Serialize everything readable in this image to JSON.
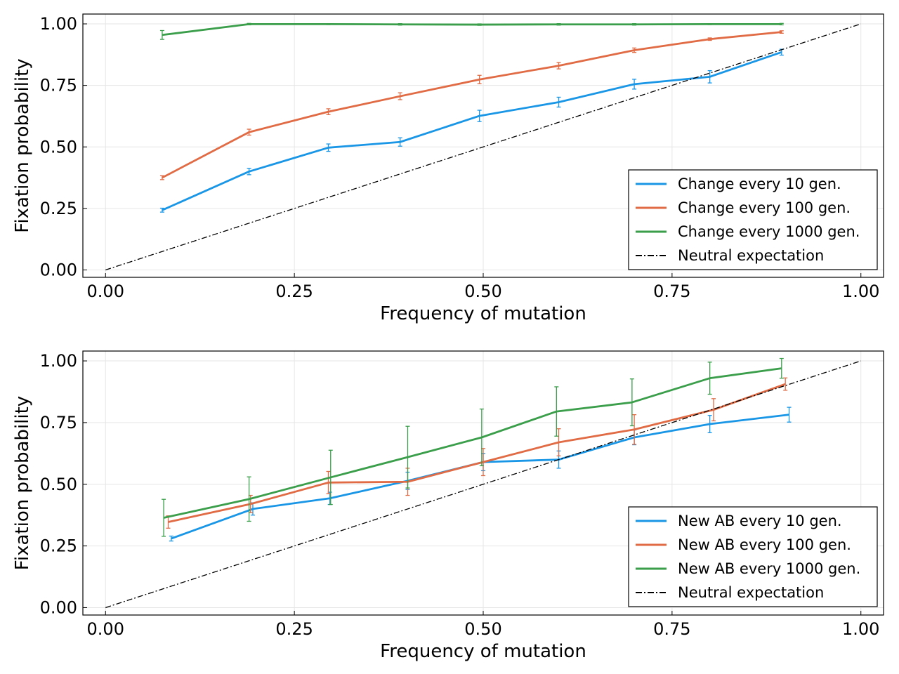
{
  "chart_data": [
    {
      "type": "line",
      "xlabel": "Frequency of mutation",
      "ylabel": "Fixation probability",
      "xlim": [
        -0.03,
        1.03
      ],
      "ylim": [
        -0.03,
        1.04
      ],
      "xticks": [
        0,
        0.25,
        0.5,
        0.75,
        1
      ],
      "xtick_labels": [
        "0.00",
        "0.25",
        "0.50",
        "0.75",
        "1.00"
      ],
      "yticks": [
        0,
        0.25,
        0.5,
        0.75,
        1
      ],
      "ytick_labels": [
        "0.00",
        "0.25",
        "0.50",
        "0.75",
        "1.00"
      ],
      "grid": true,
      "legend_position": "bottom-right",
      "series": [
        {
          "name": "Change every 10 gen.",
          "color": "#1a96e6",
          "x": [
            0.075,
            0.19,
            0.295,
            0.39,
            0.495,
            0.6,
            0.7,
            0.8,
            0.895
          ],
          "y": [
            0.243,
            0.4,
            0.497,
            0.52,
            0.626,
            0.682,
            0.755,
            0.785,
            0.885
          ],
          "err": [
            0.008,
            0.013,
            0.015,
            0.017,
            0.023,
            0.02,
            0.02,
            0.025,
            0.012
          ]
        },
        {
          "name": "Change every 100 gen.",
          "color": "#e06b44",
          "x": [
            0.075,
            0.19,
            0.295,
            0.39,
            0.495,
            0.6,
            0.7,
            0.8,
            0.895
          ],
          "y": [
            0.375,
            0.56,
            0.643,
            0.706,
            0.774,
            0.83,
            0.893,
            0.938,
            0.967
          ],
          "err": [
            0.008,
            0.012,
            0.012,
            0.014,
            0.017,
            0.013,
            0.009,
            0.005,
            0.005
          ]
        },
        {
          "name": "Change every 1000 gen.",
          "color": "#3a9e4a",
          "x": [
            0.075,
            0.19,
            0.295,
            0.39,
            0.495,
            0.6,
            0.7,
            0.8,
            0.895
          ],
          "y": [
            0.955,
            0.999,
            0.999,
            0.998,
            0.997,
            0.998,
            0.998,
            0.999,
            0.999
          ],
          "err": [
            0.018,
            0.003,
            0.002,
            0.003,
            0.003,
            0.003,
            0.003,
            0.002,
            0.003
          ]
        },
        {
          "name": "Neutral expectation",
          "color": "#000000",
          "style": "dash-dot",
          "x": [
            0,
            1
          ],
          "y": [
            0,
            1
          ]
        }
      ]
    },
    {
      "type": "line",
      "xlabel": "Frequency of mutation",
      "ylabel": "Fixation probability",
      "xlim": [
        -0.03,
        1.03
      ],
      "ylim": [
        -0.03,
        1.04
      ],
      "xticks": [
        0,
        0.25,
        0.5,
        0.75,
        1
      ],
      "xtick_labels": [
        "0.00",
        "0.25",
        "0.50",
        "0.75",
        "1.00"
      ],
      "yticks": [
        0,
        0.25,
        0.5,
        0.75,
        1
      ],
      "ytick_labels": [
        "0.00",
        "0.25",
        "0.50",
        "0.75",
        "1.00"
      ],
      "grid": true,
      "legend_position": "bottom-right",
      "series": [
        {
          "name": "New AB every 10 gen.",
          "color": "#1a96e6",
          "x": [
            0.087,
            0.195,
            0.297,
            0.4,
            0.5,
            0.6,
            0.7,
            0.8,
            0.905
          ],
          "y": [
            0.28,
            0.4,
            0.443,
            0.514,
            0.59,
            0.6,
            0.69,
            0.744,
            0.782
          ],
          "err": [
            0.01,
            0.025,
            0.025,
            0.035,
            0.035,
            0.035,
            0.03,
            0.035,
            0.03
          ]
        },
        {
          "name": "New AB every 100 gen.",
          "color": "#e06b44",
          "x": [
            0.083,
            0.192,
            0.295,
            0.4,
            0.5,
            0.6,
            0.7,
            0.805,
            0.9
          ],
          "y": [
            0.347,
            0.42,
            0.507,
            0.51,
            0.59,
            0.67,
            0.722,
            0.802,
            0.906
          ],
          "err": [
            0.025,
            0.035,
            0.045,
            0.055,
            0.055,
            0.055,
            0.06,
            0.045,
            0.025
          ]
        },
        {
          "name": "New AB every 1000 gen.",
          "color": "#3a9e4a",
          "x": [
            0.077,
            0.19,
            0.298,
            0.4,
            0.498,
            0.597,
            0.697,
            0.8,
            0.895
          ],
          "y": [
            0.364,
            0.44,
            0.528,
            0.61,
            0.69,
            0.795,
            0.832,
            0.93,
            0.97
          ],
          "err": [
            0.075,
            0.09,
            0.11,
            0.125,
            0.115,
            0.1,
            0.095,
            0.065,
            0.04
          ]
        },
        {
          "name": "Neutral expectation",
          "color": "#000000",
          "style": "dash-dot",
          "x": [
            0,
            1
          ],
          "y": [
            0,
            1
          ]
        }
      ]
    }
  ]
}
